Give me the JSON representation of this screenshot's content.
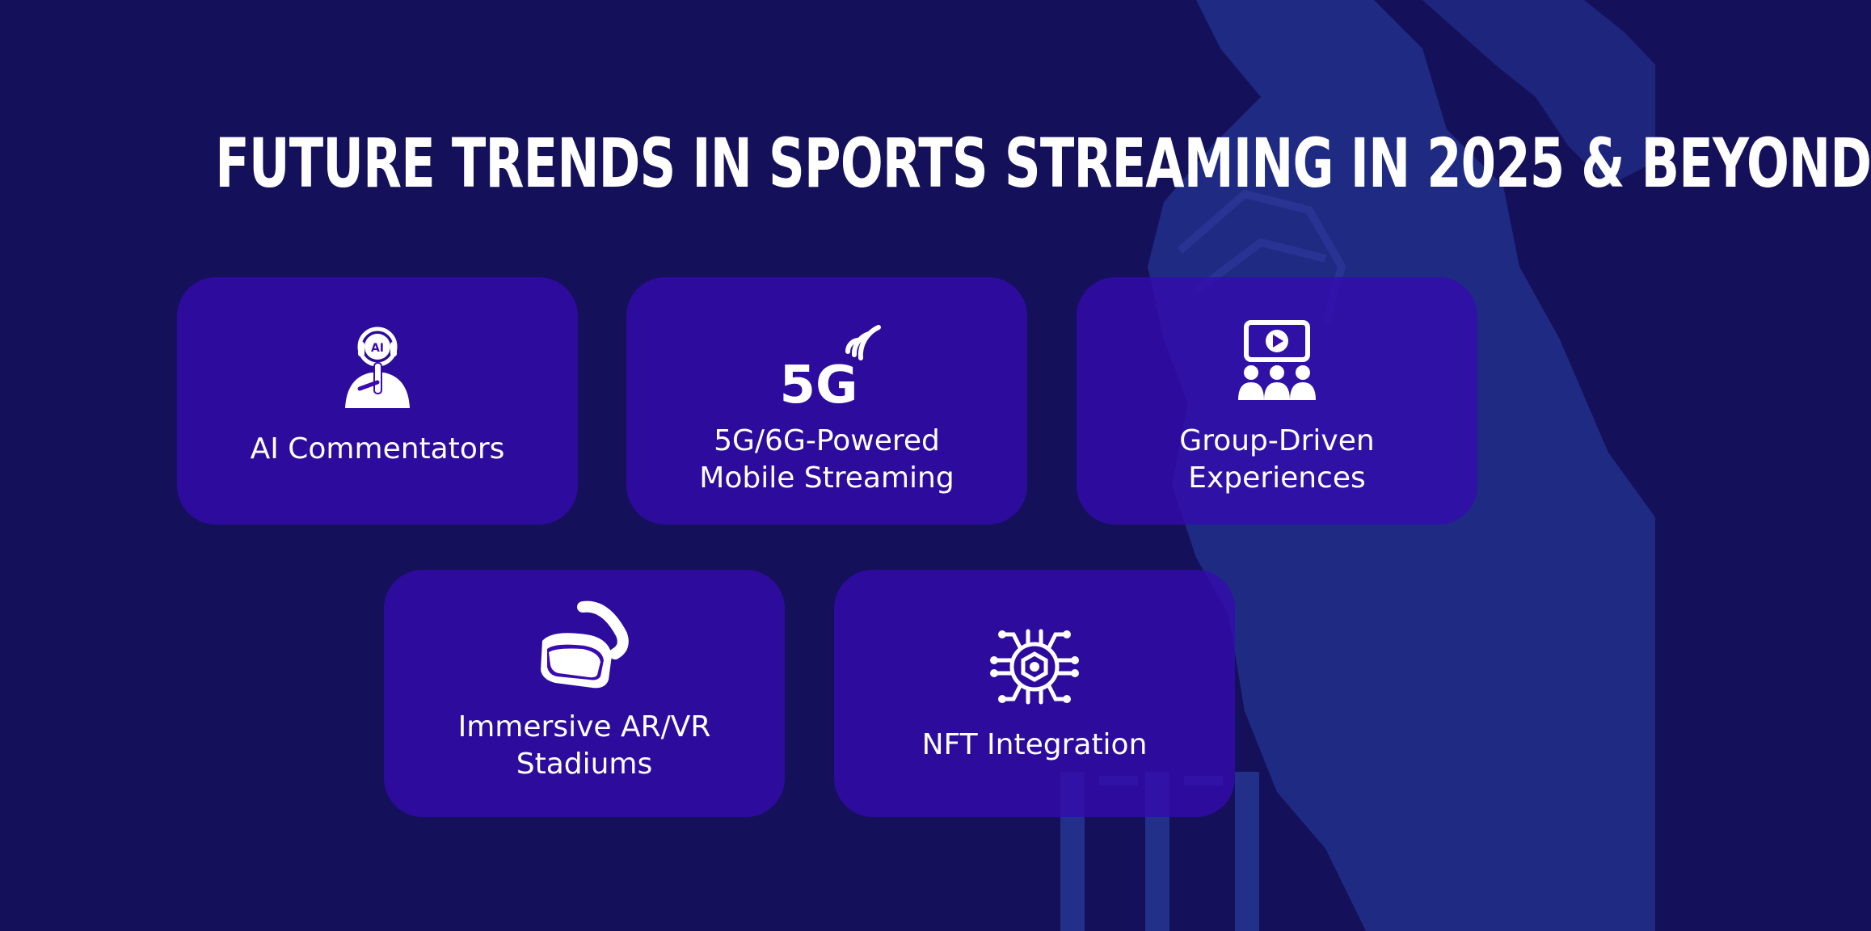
{
  "title": "FUTURE TRENDS IN SPORTS STREAMING IN 2025 & BEYOND",
  "colors": {
    "background": "#15105a",
    "card": "#3a0ab0",
    "silhouette": "#22308a",
    "text": "#ffffff"
  },
  "cards": [
    {
      "label_lines": [
        "AI Commentators"
      ],
      "icon": "ai-commentator-icon",
      "icon_text": "AI"
    },
    {
      "label_lines": [
        "5G/6G-Powered",
        "Mobile Streaming"
      ],
      "icon": "5g-signal-icon",
      "icon_text": "5G"
    },
    {
      "label_lines": [
        "Group-Driven",
        "Experiences"
      ],
      "icon": "group-watch-icon"
    },
    {
      "label_lines": [
        "Immersive AR/VR",
        "Stadiums"
      ],
      "icon": "vr-headset-icon"
    },
    {
      "label_lines": [
        "NFT Integration"
      ],
      "icon": "nft-chip-icon"
    }
  ]
}
